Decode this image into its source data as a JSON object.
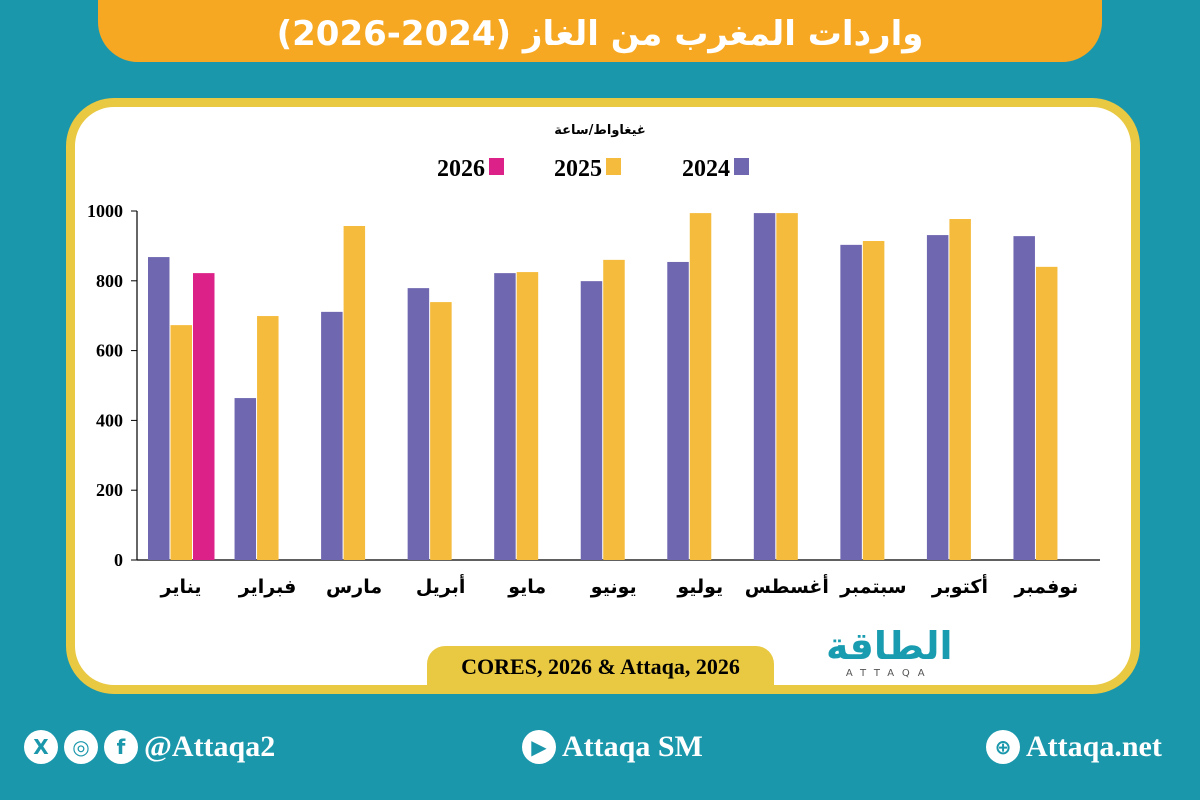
{
  "title": "واردات المغرب من الغاز (2024-2026)",
  "source": "CORES, 2026 & Attaqa, 2026",
  "logo": {
    "arabic": "الطاقة",
    "latin": "ATTAQA"
  },
  "footer": {
    "social_handle": "@Attaqa2",
    "youtube": "Attaqa SM",
    "website": "Attaqa.net"
  },
  "chart_data": {
    "type": "bar",
    "ylabel": "غيغاواط/ساعة",
    "ylim": [
      0,
      1000
    ],
    "yticks": [
      "0",
      "200",
      "400",
      "600",
      "800",
      "1000"
    ],
    "grid": false,
    "legend_position": "top",
    "categories": [
      "يناير",
      "فبراير",
      "مارس",
      "أبريل",
      "مايو",
      "يونيو",
      "يوليو",
      "أغسطس",
      "سبتمبر",
      "أكتوبر",
      "نوفمبر"
    ],
    "series": [
      {
        "name": "2024",
        "color": "#6f68b1",
        "values": [
          868,
          464,
          711,
          779,
          822,
          799,
          854,
          994,
          903,
          931,
          928
        ]
      },
      {
        "name": "2025",
        "color": "#f5bb3c",
        "values": [
          673,
          699,
          957,
          739,
          825,
          860,
          994,
          994,
          914,
          977,
          840
        ]
      },
      {
        "name": "2026",
        "color": "#dc2188",
        "values": [
          822,
          null,
          null,
          null,
          null,
          null,
          null,
          null,
          null,
          null,
          null
        ]
      }
    ]
  }
}
